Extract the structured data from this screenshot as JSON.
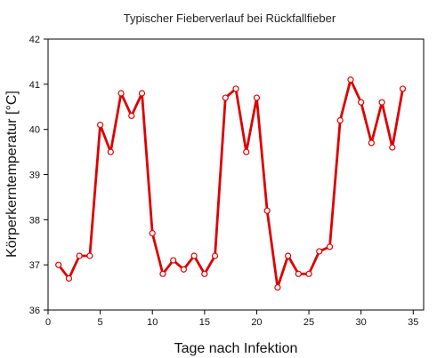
{
  "chart_data": {
    "type": "line",
    "title": "Typischer Fieberverlauf bei Rückfallfieber",
    "xlabel": "Tage nach Infektion",
    "ylabel": "Körperkerntemperatur [°C]",
    "xlim": [
      0,
      36
    ],
    "ylim": [
      36,
      42
    ],
    "xticks": [
      0,
      5,
      10,
      15,
      20,
      25,
      30,
      35
    ],
    "yticks": [
      36,
      37,
      38,
      39,
      40,
      41,
      42
    ],
    "grid": false,
    "legend": "none",
    "series": [
      {
        "color": "#dd0000",
        "marker": "open-circle",
        "x": [
          1,
          2,
          3,
          4,
          5,
          6,
          7,
          8,
          9,
          10,
          11,
          12,
          13,
          14,
          15,
          16,
          17,
          18,
          19,
          20,
          21,
          22,
          23,
          24,
          25,
          26,
          27,
          28,
          29,
          30,
          31,
          32,
          33,
          34
        ],
        "y": [
          37.0,
          36.7,
          37.2,
          37.2,
          40.1,
          39.5,
          40.8,
          40.3,
          40.8,
          37.7,
          36.8,
          37.1,
          36.9,
          37.2,
          36.8,
          37.2,
          40.7,
          40.9,
          39.5,
          40.7,
          38.2,
          36.5,
          37.2,
          36.8,
          36.8,
          37.3,
          37.4,
          40.2,
          41.1,
          40.6,
          39.7,
          40.6,
          39.6,
          40.9
        ]
      }
    ]
  }
}
